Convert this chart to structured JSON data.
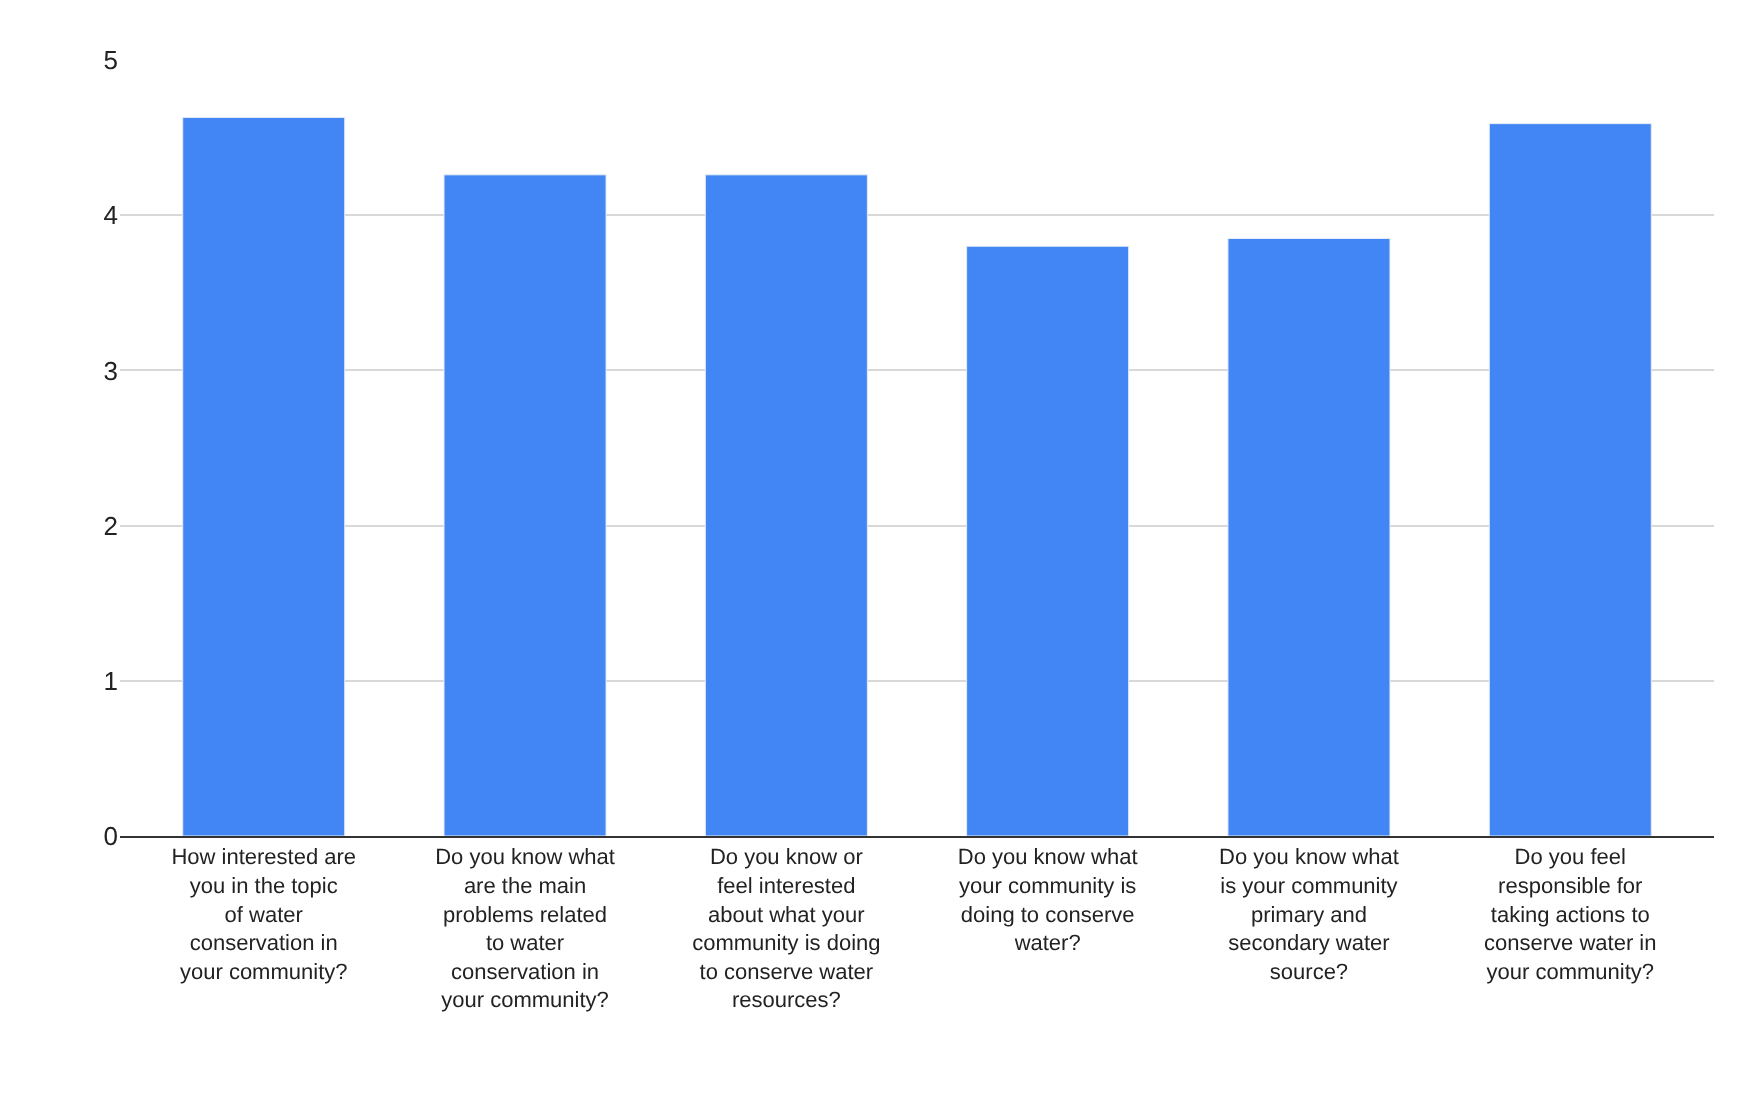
{
  "chart_data": {
    "type": "bar",
    "categories": [
      "How interested are you in the topic of water conservation in your community?",
      "Do you know what are the main problems related to water conservation in your community?",
      "Do you know or feel interested about what your community is doing to conserve water resources?",
      "Do you know what your community is doing to conserve water?",
      "Do you know what is your community primary and secondary water source?",
      "Do you feel responsible for taking actions to conserve water in your community?"
    ],
    "values": [
      4.63,
      4.26,
      4.26,
      3.8,
      3.85,
      4.59
    ],
    "color": "#4285f4",
    "ylim": [
      0,
      5
    ],
    "yticks": [
      0,
      1,
      2,
      3,
      4,
      5
    ],
    "grid": "y"
  }
}
